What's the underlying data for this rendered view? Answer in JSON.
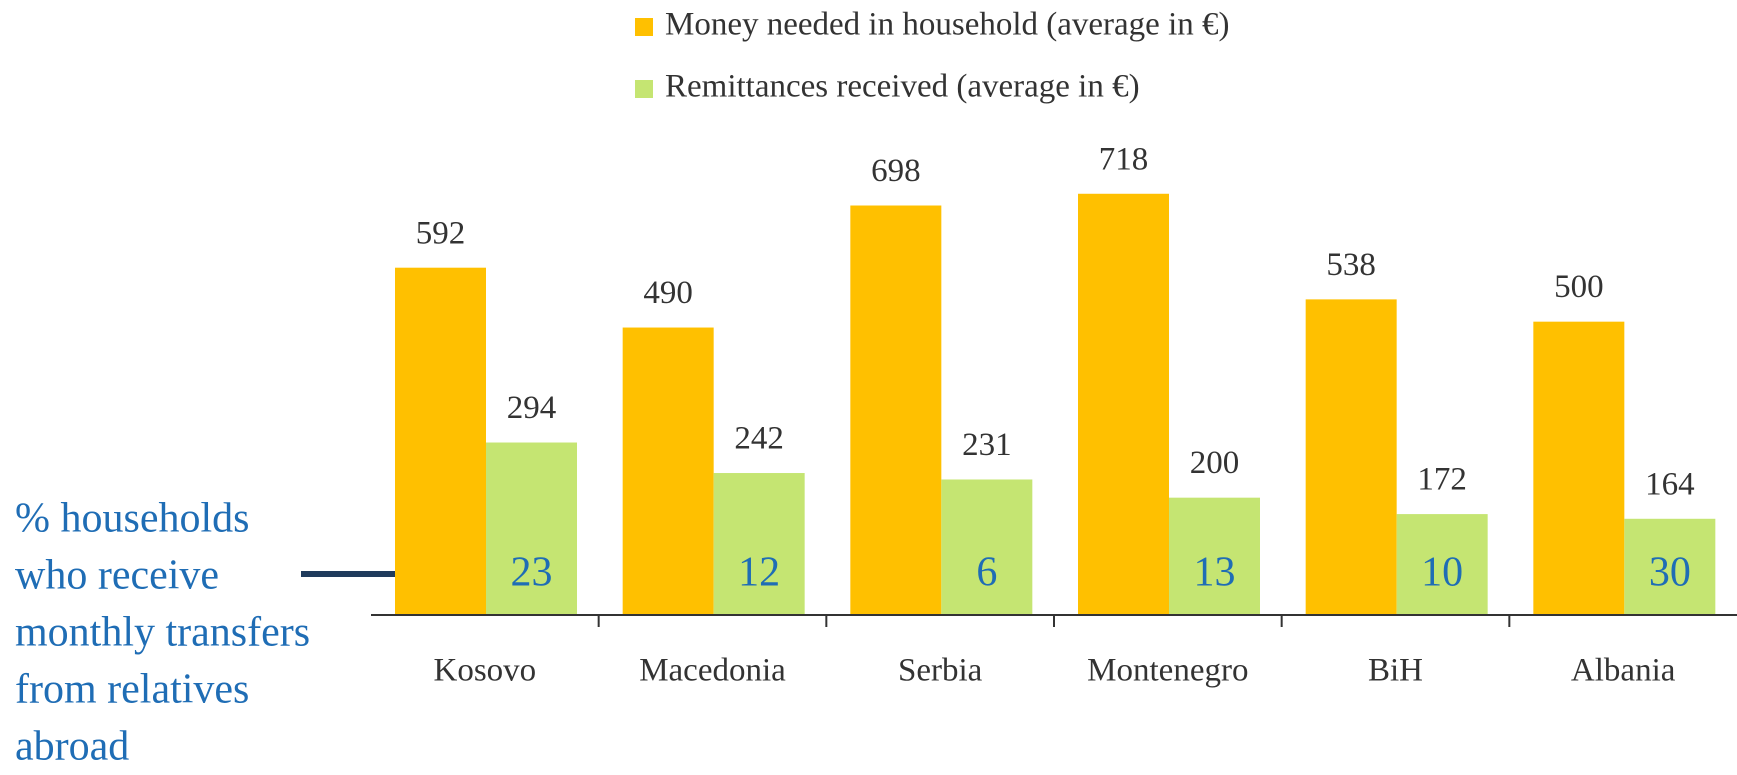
{
  "chart_data": {
    "type": "bar",
    "categories": [
      "Kosovo",
      "Macedonia",
      "Serbia",
      "Montenegro",
      "BiH",
      "Albania"
    ],
    "series": [
      {
        "name": "Money needed in household (average in €)",
        "color": "#ffc000",
        "values": [
          592,
          490,
          698,
          718,
          538,
          500
        ]
      },
      {
        "name": "Remittances received (average in €)",
        "color": "#c5e572",
        "values": [
          294,
          242,
          231,
          200,
          172,
          164
        ]
      }
    ],
    "annotation": {
      "lines": [
        "% households",
        "who receive",
        "monthly transfers",
        "from relatives",
        "abroad"
      ],
      "color": "#1f6db5",
      "values": [
        23,
        12,
        6,
        13,
        10,
        30
      ]
    },
    "ylim": [
      0,
      750
    ],
    "legend": "top"
  }
}
